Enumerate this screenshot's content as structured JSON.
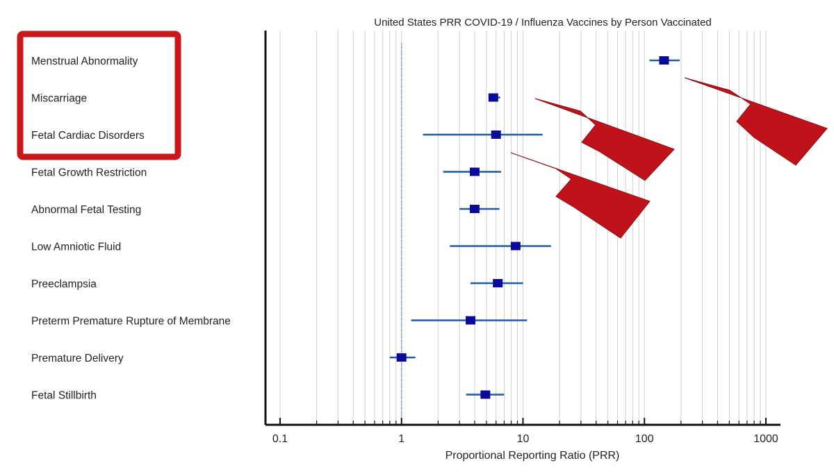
{
  "chart_data": {
    "type": "forest",
    "title": "United States PRR COVID-19 / Influenza Vaccines by Person Vaccinated",
    "xlabel": "Proportional Reporting Ratio (PRR)",
    "x_scale": "log",
    "xlim": [
      0.1,
      1000
    ],
    "x_ticks": [
      {
        "value": 0.1,
        "label": "0.1"
      },
      {
        "value": 1,
        "label": "1"
      },
      {
        "value": 10,
        "label": "10"
      },
      {
        "value": 100,
        "label": "100"
      },
      {
        "value": 1000,
        "label": "1000"
      }
    ],
    "reference_line": 1,
    "rows": [
      {
        "label": "Menstrual Abnormality",
        "estimate": 145,
        "ci_low": 110,
        "ci_high": 195,
        "highlighted": true
      },
      {
        "label": "Miscarriage",
        "estimate": 5.7,
        "ci_low": 5.2,
        "ci_high": 6.5,
        "highlighted": true
      },
      {
        "label": "Fetal Cardiac Disorders",
        "estimate": 6,
        "ci_low": 1.5,
        "ci_high": 14.5,
        "highlighted": true
      },
      {
        "label": "Fetal Growth Restriction",
        "estimate": 4,
        "ci_low": 2.2,
        "ci_high": 6.6,
        "highlighted": false
      },
      {
        "label": "Abnormal Fetal Testing",
        "estimate": 4,
        "ci_low": 3,
        "ci_high": 6.4,
        "highlighted": false
      },
      {
        "label": "Low Amniotic Fluid",
        "estimate": 8.7,
        "ci_low": 2.5,
        "ci_high": 17,
        "highlighted": false
      },
      {
        "label": "Preeclampsia",
        "estimate": 6.2,
        "ci_low": 3.7,
        "ci_high": 10,
        "highlighted": false
      },
      {
        "label": "Preterm Premature Rupture of Membrane",
        "estimate": 3.7,
        "ci_low": 1.2,
        "ci_high": 10.8,
        "highlighted": false
      },
      {
        "label": "Premature Delivery",
        "estimate": 1,
        "ci_low": 0.8,
        "ci_high": 1.3,
        "highlighted": false
      },
      {
        "label": "Fetal Stillbirth",
        "estimate": 4.9,
        "ci_low": 3.4,
        "ci_high": 7,
        "highlighted": false
      }
    ],
    "colors": {
      "marker": "#0b0b99",
      "ci_line": "#1a5ca6",
      "reference_line": "#5a7fd0",
      "grid": "#d0d0d0",
      "axis": "#111111",
      "highlight_box": "#c8171d",
      "arrow": "#c0121a"
    }
  }
}
